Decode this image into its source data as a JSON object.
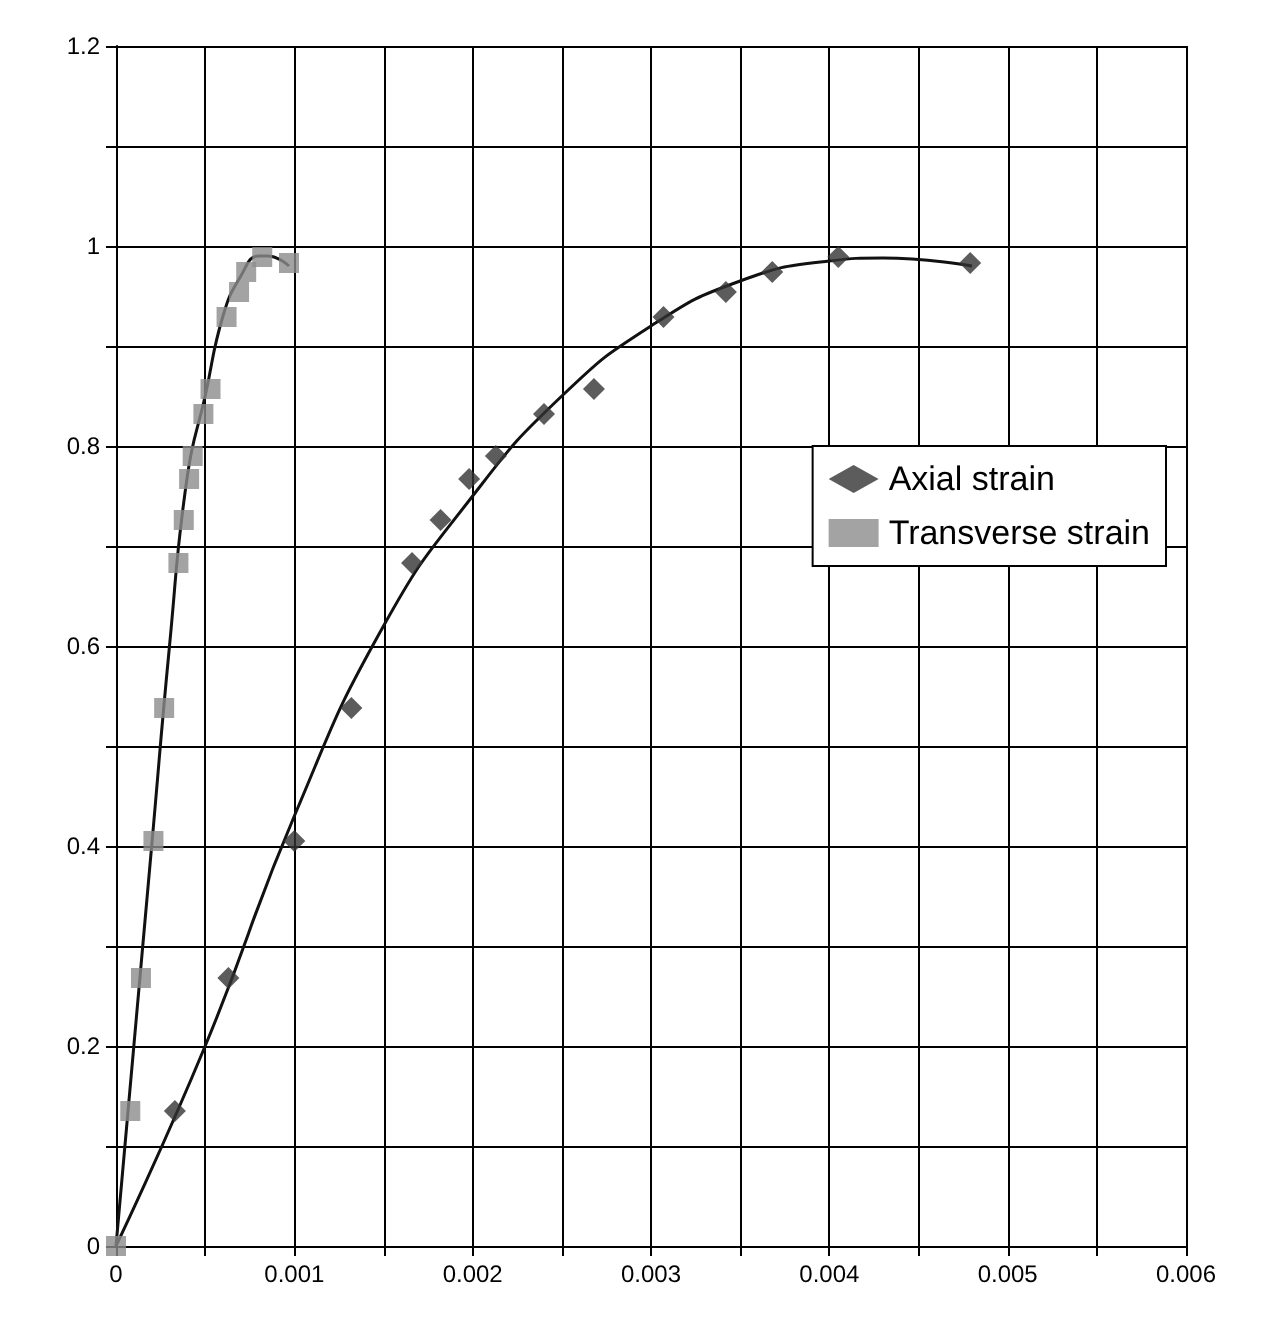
{
  "chart_data": {
    "type": "scatter",
    "xlim": [
      0,
      0.006
    ],
    "ylim": [
      0,
      1.2
    ],
    "xticks": [
      0,
      {
        "value": 0.0005,
        "label": null
      },
      {
        "value": 0.001,
        "label": "0.001"
      },
      {
        "value": 0.0015,
        "label": null
      },
      {
        "value": 0.002,
        "label": "0.002"
      },
      {
        "value": 0.0025,
        "label": null
      },
      {
        "value": 0.003,
        "label": "0.003"
      },
      {
        "value": 0.0035,
        "label": null
      },
      {
        "value": 0.004,
        "label": "0.004"
      },
      {
        "value": 0.0045,
        "label": null
      },
      {
        "value": 0.005,
        "label": "0.005"
      },
      {
        "value": 0.0055,
        "label": null
      },
      {
        "value": 0.006,
        "label": "0.006"
      }
    ],
    "yticks": [
      0,
      {
        "value": 0.1,
        "label": null
      },
      0.2,
      {
        "value": 0.3,
        "label": null
      },
      0.4,
      {
        "value": 0.5,
        "label": null
      },
      0.6,
      {
        "value": 0.7,
        "label": null
      },
      0.8,
      {
        "value": 0.9,
        "label": null
      },
      1,
      {
        "value": 1.1,
        "label": null
      },
      1.2
    ],
    "grid": true,
    "legend": "right",
    "series": [
      {
        "name": "Axial strain",
        "color": "#333333",
        "marker": "diamond",
        "x": [
          0.00033,
          0.00063,
          0.001,
          0.00132,
          0.00166,
          0.00182,
          0.00198,
          0.00213,
          0.0024,
          0.00268,
          0.00307,
          0.00342,
          0.00368,
          0.00405,
          0.00479
        ],
        "values": [
          0.135,
          0.268,
          0.405,
          0.538,
          0.683,
          0.726,
          0.767,
          0.79,
          0.832,
          0.857,
          0.929,
          0.954,
          0.974,
          0.989,
          0.983
        ]
      },
      {
        "name": "Transverse strain",
        "color": "#8c8c8c",
        "marker": "square",
        "x": [
          0,
          8e-05,
          0.00014,
          0.00021,
          0.00027,
          0.00035,
          0.00038,
          0.00041,
          0.00043,
          0.00049,
          0.00053,
          0.00062,
          0.00069,
          0.00073,
          0.00082,
          0.00097
        ],
        "values": [
          0,
          0.135,
          0.268,
          0.405,
          0.538,
          0.683,
          0.726,
          0.767,
          0.79,
          0.832,
          0.857,
          0.929,
          0.954,
          0.974,
          0.989,
          0.983
        ]
      },
      {
        "type": "line",
        "color": "#111111",
        "marker": "none",
        "x": [
          0,
          0.0005,
          0.001,
          0.0015,
          0.002,
          0.0025,
          0.003,
          0.0035,
          0.004,
          0.0043,
          0.0048
        ],
        "values": [
          0,
          0.2,
          0.43,
          0.62,
          0.75,
          0.85,
          0.92,
          0.965,
          0.985,
          0.988,
          0.98
        ]
      },
      {
        "type": "line",
        "color": "#111111",
        "marker": "none",
        "x": [
          0,
          0.0001,
          0.0002,
          0.0003,
          0.0004,
          0.0005,
          0.0006,
          0.0007,
          0.0008,
          0.00085,
          0.00097
        ],
        "values": [
          0,
          0.2,
          0.4,
          0.6,
          0.77,
          0.85,
          0.93,
          0.97,
          0.99,
          0.99,
          0.98
        ]
      }
    ]
  }
}
